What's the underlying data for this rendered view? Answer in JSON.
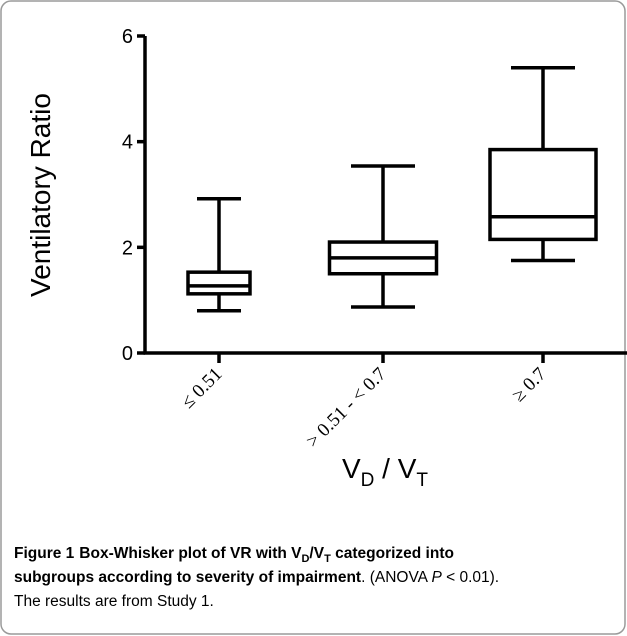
{
  "chart_data": {
    "type": "box",
    "y_label": "Ventilatory Ratio",
    "x_label": [
      "V",
      "D",
      " / V",
      "T"
    ],
    "categories": [
      "≤ 0.51",
      "> 0.51 - < 0.7",
      "≥ 0.7"
    ],
    "boxes": [
      {
        "min": 0.8,
        "q1": 1.12,
        "median": 1.27,
        "q3": 1.53,
        "max": 2.92
      },
      {
        "min": 0.87,
        "q1": 1.5,
        "median": 1.8,
        "q3": 2.1,
        "max": 3.54
      },
      {
        "min": 1.75,
        "q1": 2.15,
        "median": 2.58,
        "q3": 3.85,
        "max": 5.4
      }
    ],
    "color": "#000000",
    "ylim": [
      0,
      6
    ],
    "yticks": [
      0,
      2,
      4,
      6
    ]
  },
  "caption": {
    "label": "Figure 1",
    "line1": [
      "Box-Whisker plot of VR with V",
      "D",
      "/V",
      "T",
      " categorized into"
    ],
    "line2": [
      "subgroups according to severity of impairment",
      ". (ANOVA ",
      "P",
      " < 0.01)."
    ],
    "line3": "The results are from Study 1."
  }
}
